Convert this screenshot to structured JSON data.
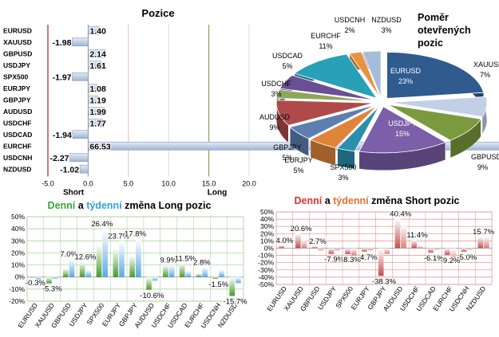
{
  "chart_data": [
    {
      "type": "bar",
      "orientation": "horizontal",
      "title": "Pozice",
      "categories": [
        "EURUSD",
        "XAUUSD",
        "GBPUSD",
        "USDJPY",
        "SPX500",
        "EURJPY",
        "GBPJPY",
        "AUDUSD",
        "USDCHF",
        "USDCAD",
        "EURCHF",
        "USDCNH",
        "NZDUSD"
      ],
      "values": [
        1.4,
        -1.98,
        2.14,
        1.61,
        -1.97,
        1.08,
        1.19,
        1.99,
        1.77,
        -1.94,
        66.53,
        -2.27,
        -1.02
      ],
      "value_labels": [
        "1.40",
        "-1.98",
        "2.14",
        "1.61",
        "-1.97",
        "1.08",
        "1.19",
        "1.99",
        "1.77",
        "-1.94",
        "66.53",
        "-2.27",
        "-1.02"
      ],
      "xlim": [
        -5,
        20
      ],
      "xticks": [
        "-5.0",
        "0.0",
        "5.0",
        "10.0",
        "15.0",
        "20.0"
      ],
      "short_label": "Short",
      "long_label": "Long",
      "colors": {
        "bar": "#9fb4d3",
        "bar_light": "#e4ebf5",
        "short_line": "#c0504d",
        "long_line": "#77933c"
      }
    },
    {
      "type": "pie",
      "title_lines": [
        "Poměr",
        "otevřených",
        "pozic"
      ],
      "slices": [
        {
          "label": "EURUSD",
          "value": 23,
          "color": "#2f5b8f"
        },
        {
          "label": "XAUUSD",
          "value": 7,
          "color": "#c2d0e6"
        },
        {
          "label": "GBPUSD",
          "value": 9,
          "color": "#7a9a3d"
        },
        {
          "label": "USDJPY",
          "value": 15,
          "color": "#7b5fa8"
        },
        {
          "label": "SPX500",
          "value": 3,
          "color": "#2a8fae"
        },
        {
          "label": "EURJPY",
          "value": 5,
          "color": "#e0843a"
        },
        {
          "label": "GBPJPY",
          "value": 5,
          "color": "#5d7faf"
        },
        {
          "label": "AUDUSD",
          "value": 9,
          "color": "#b04a4a"
        },
        {
          "label": "USDCHF",
          "value": 3,
          "color": "#8ea65c"
        },
        {
          "label": "USDCAD",
          "value": 5,
          "color": "#6a4f94"
        },
        {
          "label": "EURCHF",
          "value": 11,
          "color": "#28a0b8"
        },
        {
          "label": "USDCNH",
          "value": 2,
          "color": "#e8923f"
        },
        {
          "label": "NZDUSD",
          "value": 3,
          "color": "#a6bcd9"
        }
      ],
      "value_labels": [
        "23%",
        "7%",
        "9%",
        "15%",
        "3%",
        "5%",
        "5%",
        "9%",
        "3%",
        "5%",
        "11%",
        "2%",
        "3%"
      ]
    },
    {
      "type": "bar",
      "title_parts": [
        "Denní",
        " a ",
        "týdenní",
        " změna Long pozic"
      ],
      "title_colors": [
        "#3aa63a",
        "#000000",
        "#2fa0e0",
        "#000000"
      ],
      "categories": [
        "EURUSD",
        "XAUUSD",
        "GBPUSD",
        "USDJPY",
        "SPX500",
        "EURJPY",
        "GBPJPY",
        "AUDUSD",
        "USDCHF",
        "USDCAD",
        "EURCHF",
        "USDCNH",
        "NZDUSD"
      ],
      "series": [
        {
          "name": "Denní",
          "values": [
            -0.3,
            -5.3,
            7.0,
            12.6,
            26.4,
            23.7,
            17.8,
            -10.6,
            9.9,
            11.5,
            2.8,
            -1.5,
            -15.7
          ],
          "color": "#4a9a2a"
        },
        {
          "name": "týdenní",
          "values": [
            -2.0,
            -1.5,
            15.0,
            6.0,
            40.0,
            30.0,
            32.0,
            -3.0,
            10.0,
            5.0,
            8.0,
            6.0,
            -5.0
          ],
          "color": "#5aaae6"
        }
      ],
      "data_labels": [
        "-0.3%",
        "-5.3%",
        "7.0%",
        "12.6%",
        "26.4%",
        "23.7%",
        "17.8%",
        "-10.6%",
        "9.9%",
        "11.5%",
        "2.8%",
        "-1.5%",
        "-15.7%"
      ],
      "ylim": [
        -20,
        50
      ],
      "yticks": [
        "-20%",
        "-10%",
        "0%",
        "10%",
        "20%",
        "30%",
        "40%",
        "50%"
      ]
    },
    {
      "type": "bar",
      "title_parts": [
        "Denní",
        " a ",
        "týdenní",
        " změna Short pozic"
      ],
      "title_colors": [
        "#e03030",
        "#000000",
        "#e07030",
        "#000000"
      ],
      "categories": [
        "EURUSD",
        "XAUUSD",
        "GBPUSD",
        "USDJPY",
        "SPX500",
        "EURJPY",
        "GBPJPY",
        "AUDUSD",
        "USDCHF",
        "USDCAD",
        "EURCHF",
        "USDCNH",
        "NZDUSD"
      ],
      "series": [
        {
          "name": "Denní",
          "values": [
            4.0,
            20.6,
            2.7,
            -7.9,
            -8.3,
            -4.7,
            -38.3,
            40.4,
            11.4,
            -6.1,
            -9.2,
            -5.0,
            15.7
          ],
          "color": "#c0504d"
        },
        {
          "name": "týdenní",
          "values": [
            1.0,
            12.0,
            -3.0,
            -3.0,
            -10.0,
            -3.0,
            -8.0,
            32.0,
            3.0,
            -2.0,
            -20.0,
            -2.0,
            16.0
          ],
          "color": "#d98080"
        }
      ],
      "data_labels": [
        "4.0%",
        "20.6%",
        "2.7%",
        "-7.9%",
        "-8.3%",
        "-4.7%",
        "-38.3%",
        "40.4%",
        "11.4%",
        "-6.1%",
        "-9.2%",
        "-5.0%",
        "15.7%"
      ],
      "ylim": [
        -50,
        50
      ],
      "yticks": [
        "-50%",
        "-40%",
        "-30%",
        "-20%",
        "-10%",
        "0%",
        "10%",
        "20%",
        "30%",
        "40%",
        "50%"
      ]
    }
  ]
}
